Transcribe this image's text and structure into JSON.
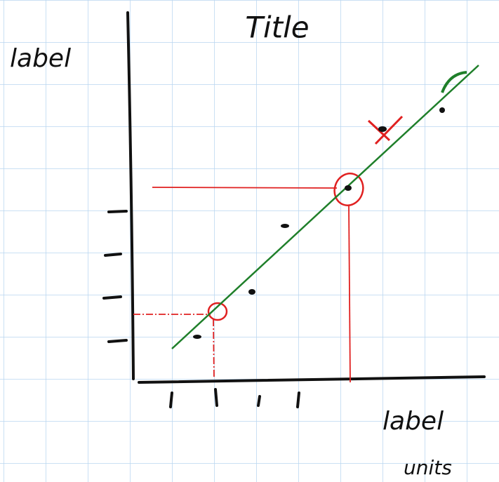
{
  "header": {
    "title": "Title"
  },
  "y_axis": {
    "label": "label"
  },
  "x_axis": {
    "label": "label",
    "units": "units"
  }
}
